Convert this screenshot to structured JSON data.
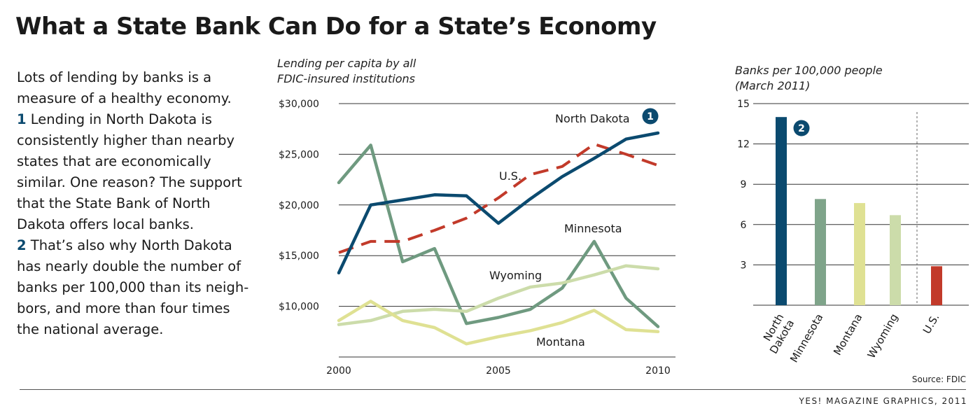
{
  "title": "What a State Bank Can Do for a State’s Economy",
  "intro": {
    "lines": [
      {
        "n": "",
        "t": "Lots of lending by banks is a"
      },
      {
        "n": "",
        "t": "measure of a healthy economy."
      },
      {
        "n": "1",
        "t": " Lending in North Dakota is"
      },
      {
        "n": "",
        "t": "consistently higher than nearby"
      },
      {
        "n": "",
        "t": "states that are economically"
      },
      {
        "n": "",
        "t": "similar. One reason? The support"
      },
      {
        "n": "",
        "t": "that the State Bank of North"
      },
      {
        "n": "",
        "t": "Dakota offers local banks."
      },
      {
        "n": "2",
        "t": " That’s also why North Dakota"
      },
      {
        "n": "",
        "t": "has nearly double the number of"
      },
      {
        "n": "",
        "t": "banks per 100,000 than its neigh-"
      },
      {
        "n": "",
        "t": "bors, and more than four times"
      },
      {
        "n": "",
        "t": "the national average."
      }
    ]
  },
  "source": "Source: FDIC",
  "credit": "YES! MAGAZINE GRAPHICS, 2011",
  "chart_data": [
    {
      "type": "line",
      "subtitle": [
        "Lending per capita by all",
        "FDIC-insured institutions"
      ],
      "x": [
        2000,
        2001,
        2002,
        2003,
        2004,
        2005,
        2006,
        2007,
        2008,
        2009,
        2010
      ],
      "xticks": [
        "2000",
        "2005",
        "2010"
      ],
      "xtick_values": [
        2000,
        2005,
        2010
      ],
      "yticks": [
        "$30,000",
        "$25,000",
        "$20,000",
        "$15,000",
        "$10,000"
      ],
      "ytick_values": [
        30000,
        25000,
        20000,
        15000,
        10000
      ],
      "ylim": [
        5000,
        30000
      ],
      "grid": true,
      "series": [
        {
          "name": "Minnesota",
          "color": "#6f9a80",
          "dashed": false,
          "values": [
            22200,
            25900,
            14400,
            15700,
            8300,
            8900,
            9700,
            11800,
            16400,
            10800,
            8000
          ]
        },
        {
          "name": "Wyoming",
          "color": "#ccdcaa",
          "dashed": false,
          "values": [
            8200,
            8600,
            9500,
            9700,
            9500,
            10800,
            11900,
            12300,
            13100,
            14000,
            13700
          ]
        },
        {
          "name": "Montana",
          "color": "#dfe193",
          "dashed": false,
          "values": [
            8600,
            10500,
            8600,
            7900,
            6300,
            7000,
            7600,
            8400,
            9600,
            7700,
            7500
          ]
        },
        {
          "name": "U.S.",
          "color": "#c23a2a",
          "dashed": true,
          "values": [
            15300,
            16400,
            16400,
            17500,
            18700,
            20700,
            23000,
            23800,
            26000,
            25000,
            23900
          ]
        },
        {
          "name": "North Dakota",
          "color": "#0b4a6f",
          "dashed": false,
          "values": [
            13300,
            20000,
            20500,
            21000,
            20900,
            18200,
            20600,
            22800,
            24600,
            26500,
            27100
          ]
        }
      ],
      "labels": {
        "North Dakota": "North Dakota",
        "US": "U.S.",
        "Minnesota": "Minnesota",
        "Wyoming": "Wyoming",
        "Montana": "Montana"
      },
      "callout": "1"
    },
    {
      "type": "bar",
      "subtitle": [
        "Banks per 100,000 people",
        "(March 2011)"
      ],
      "categories": [
        [
          "North",
          "Dakota"
        ],
        [
          "Minnesota"
        ],
        [
          "Montana"
        ],
        [
          "Wyoming"
        ],
        [
          "U.S."
        ]
      ],
      "values": [
        14.0,
        7.9,
        7.6,
        6.7,
        2.9
      ],
      "colors": [
        "#0b4a6f",
        "#7fa48a",
        "#dfe193",
        "#ccdcaa",
        "#c23a2a"
      ],
      "yticks": [
        "15",
        "12",
        "9",
        "6",
        "3"
      ],
      "ytick_values": [
        15,
        12,
        9,
        6,
        3
      ],
      "ylim": [
        0,
        15
      ],
      "callout": "2"
    }
  ]
}
